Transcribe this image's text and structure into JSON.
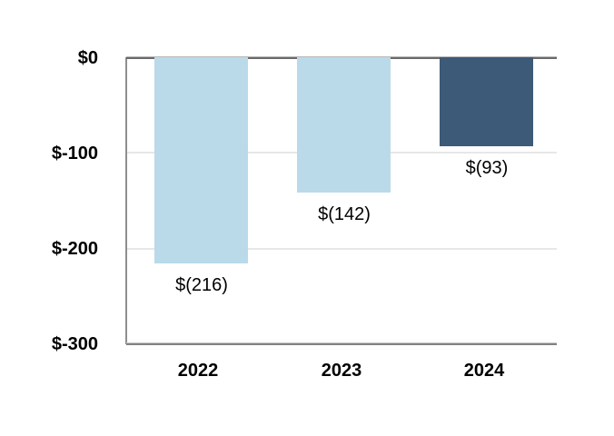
{
  "chart_data": {
    "type": "bar",
    "categories": [
      "2022",
      "2023",
      "2024"
    ],
    "values": [
      -216,
      -142,
      -93
    ],
    "data_labels": [
      "$(216)",
      "$(142)",
      "$(93)"
    ],
    "y_ticks": [
      "$0",
      "$-100",
      "$-200",
      "$-300"
    ],
    "y_tick_values": [
      0,
      -100,
      -200,
      -300
    ],
    "ylim": [
      -300,
      0
    ],
    "title": "",
    "xlabel": "",
    "ylabel": "",
    "grid": true,
    "legend": false,
    "bar_colors": [
      "#badae9",
      "#badae9",
      "#3d5a78"
    ],
    "colors": {
      "bar_light_blue": "#badae9",
      "bar_dark_blue": "#3d5a78",
      "gridline": "#e7e7e7",
      "zero_axis_line": "#6a6a6a",
      "label_text": "#000000"
    }
  }
}
